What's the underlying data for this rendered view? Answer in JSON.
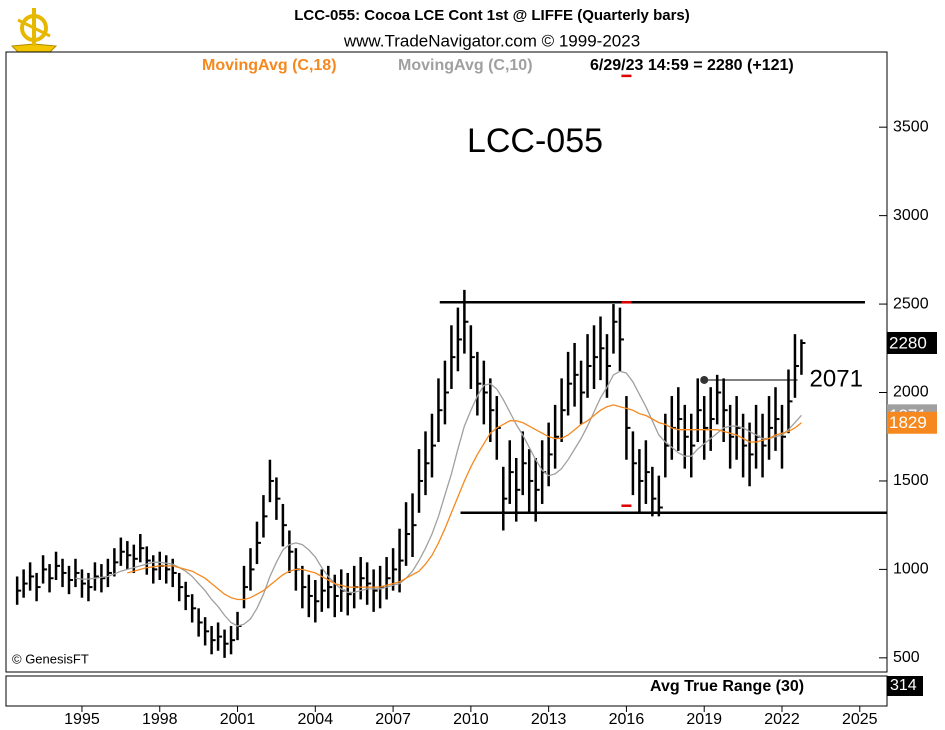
{
  "chart_data": {
    "type": "ohlc",
    "title": "LCC-055:  Cocoa LCE Cont 1st @ LIFFE  (Quarterly bars)",
    "subtitle": "www.TradeNavigator.com © 1999-2023",
    "quote": "6/29/23 14:59 = 2280 (+121)",
    "watermark": "LCC-055",
    "credit": "© GenesisFT",
    "lower_panel": {
      "title": "Avg True Range (30)",
      "last": 314
    },
    "xlim": [
      1992.07,
      2026.05
    ],
    "xticks": [
      1995,
      1998,
      2001,
      2004,
      2007,
      2010,
      2013,
      2016,
      2019,
      2022,
      2025
    ],
    "ylim": [
      420,
      3925
    ],
    "yticks": [
      500,
      1000,
      1500,
      2000,
      2500,
      3000,
      3500
    ],
    "x": [
      1992.5,
      1992.75,
      1993,
      1993.25,
      1993.5,
      1993.75,
      1994,
      1994.25,
      1994.5,
      1994.75,
      1995,
      1995.25,
      1995.5,
      1995.75,
      1996,
      1996.25,
      1996.5,
      1996.75,
      1997,
      1997.25,
      1997.5,
      1997.75,
      1998,
      1998.25,
      1998.5,
      1998.75,
      1999,
      1999.25,
      1999.5,
      1999.75,
      2000,
      2000.25,
      2000.5,
      2000.75,
      2001,
      2001.25,
      2001.5,
      2001.75,
      2002,
      2002.25,
      2002.5,
      2002.75,
      2003,
      2003.25,
      2003.5,
      2003.75,
      2004,
      2004.25,
      2004.5,
      2004.75,
      2005,
      2005.25,
      2005.5,
      2005.75,
      2006,
      2006.25,
      2006.5,
      2006.75,
      2007,
      2007.25,
      2007.5,
      2007.75,
      2008,
      2008.25,
      2008.5,
      2008.75,
      2009,
      2009.25,
      2009.5,
      2009.75,
      2010,
      2010.25,
      2010.5,
      2010.75,
      2011,
      2011.25,
      2011.5,
      2011.75,
      2012,
      2012.25,
      2012.5,
      2012.75,
      2013,
      2013.25,
      2013.5,
      2013.75,
      2014,
      2014.25,
      2014.5,
      2014.75,
      2015,
      2015.25,
      2015.5,
      2015.75,
      2016,
      2016.25,
      2016.5,
      2016.75,
      2017,
      2017.25,
      2017.5,
      2017.75,
      2018,
      2018.25,
      2018.5,
      2018.75,
      2019,
      2019.25,
      2019.5,
      2019.75,
      2020,
      2020.25,
      2020.5,
      2020.75,
      2021,
      2021.25,
      2021.5,
      2021.75,
      2022,
      2022.25,
      2022.5,
      2022.75
    ],
    "high": [
      960,
      1000,
      1040,
      980,
      1080,
      1030,
      1100,
      1060,
      1020,
      1060,
      1000,
      980,
      1040,
      1030,
      1060,
      1120,
      1180,
      1160,
      1140,
      1200,
      1130,
      1080,
      1100,
      1080,
      1060,
      980,
      930,
      860,
      780,
      730,
      680,
      700,
      660,
      680,
      760,
      1020,
      1120,
      1270,
      1420,
      1620,
      1520,
      1370,
      1220,
      1120,
      1020,
      970,
      940,
      1000,
      1020,
      970,
      1000,
      980,
      1020,
      1070,
      1040,
      1000,
      1020,
      1070,
      1120,
      1230,
      1380,
      1430,
      1680,
      1780,
      1880,
      2080,
      2180,
      2380,
      2480,
      2580,
      2380,
      2230,
      2180,
      2080,
      1980,
      1580,
      1730,
      1630,
      1780,
      1680,
      1630,
      1730,
      1830,
      1930,
      2080,
      2230,
      2280,
      2180,
      2330,
      2380,
      2430,
      2330,
      2500,
      2480,
      1980,
      1780,
      1680,
      1730,
      1580,
      1530,
      1880,
      1980,
      2030,
      1930,
      1880,
      2080,
      1980,
      2030,
      2100,
      2080,
      1930,
      1980,
      1880,
      1830,
      1930,
      1880,
      1980,
      2030,
      1930,
      2130,
      2330,
      2300
    ],
    "low": [
      800,
      840,
      880,
      820,
      920,
      870,
      940,
      900,
      860,
      900,
      840,
      820,
      880,
      870,
      900,
      960,
      1020,
      1000,
      980,
      1040,
      970,
      920,
      940,
      920,
      900,
      820,
      770,
      700,
      620,
      570,
      520,
      540,
      500,
      520,
      600,
      780,
      880,
      1030,
      1180,
      1380,
      1280,
      1130,
      980,
      880,
      780,
      730,
      700,
      760,
      780,
      730,
      760,
      740,
      780,
      830,
      800,
      760,
      780,
      830,
      880,
      870,
      1020,
      1070,
      1320,
      1420,
      1520,
      1720,
      1820,
      2020,
      2120,
      2220,
      2020,
      1870,
      1820,
      1720,
      1620,
      1220,
      1370,
      1270,
      1420,
      1320,
      1270,
      1370,
      1470,
      1570,
      1720,
      1870,
      1920,
      1820,
      1970,
      2020,
      2070,
      1970,
      2220,
      2120,
      1620,
      1420,
      1320,
      1370,
      1300,
      1300,
      1520,
      1620,
      1670,
      1570,
      1520,
      1720,
      1620,
      1670,
      1820,
      1720,
      1570,
      1620,
      1520,
      1470,
      1570,
      1520,
      1620,
      1670,
      1570,
      1770,
      1970,
      2100
    ],
    "close": [
      880,
      920,
      960,
      900,
      1000,
      950,
      1020,
      980,
      940,
      980,
      920,
      900,
      960,
      950,
      980,
      1040,
      1100,
      1080,
      1060,
      1120,
      1050,
      1000,
      1020,
      1000,
      980,
      900,
      850,
      780,
      700,
      650,
      600,
      620,
      580,
      600,
      680,
      900,
      1000,
      1150,
      1300,
      1500,
      1400,
      1250,
      1100,
      1000,
      900,
      850,
      820,
      880,
      900,
      850,
      880,
      860,
      900,
      950,
      920,
      880,
      900,
      950,
      1000,
      1050,
      1200,
      1250,
      1500,
      1600,
      1700,
      1900,
      2000,
      2200,
      2300,
      2400,
      2200,
      2050,
      2000,
      1900,
      1800,
      1400,
      1550,
      1450,
      1600,
      1500,
      1450,
      1550,
      1650,
      1750,
      1900,
      2050,
      2100,
      2000,
      2150,
      2200,
      2250,
      2150,
      2400,
      2300,
      1800,
      1600,
      1500,
      1550,
      1400,
      1350,
      1700,
      1800,
      1850,
      1750,
      1700,
      1900,
      1800,
      1850,
      2000,
      1900,
      1750,
      1800,
      1700,
      1650,
      1750,
      1700,
      1800,
      1850,
      1750,
      1950,
      2150,
      2280
    ],
    "color": "#000000",
    "series": [
      {
        "name": "MovingAvg (C,18)",
        "color": "#f5891f",
        "values": [
          null,
          null,
          null,
          null,
          null,
          null,
          null,
          null,
          null,
          null,
          null,
          null,
          null,
          null,
          null,
          null,
          null,
          980,
          990,
          1000,
          1010,
          1015,
          1020,
          1020,
          1020,
          1010,
          1000,
          990,
          970,
          950,
          920,
          890,
          860,
          840,
          830,
          830,
          840,
          860,
          880,
          910,
          940,
          970,
          990,
          1000,
          1000,
          990,
          980,
          960,
          940,
          920,
          910,
          900,
          900,
          900,
          900,
          900,
          900,
          910,
          920,
          930,
          950,
          970,
          990,
          1030,
          1080,
          1150,
          1230,
          1320,
          1410,
          1500,
          1580,
          1650,
          1710,
          1770,
          1800,
          1820,
          1840,
          1840,
          1830,
          1810,
          1790,
          1770,
          1750,
          1740,
          1740,
          1760,
          1790,
          1820,
          1840,
          1870,
          1900,
          1920,
          1930,
          1920,
          1910,
          1900,
          1880,
          1870,
          1850,
          1830,
          1820,
          1800,
          1790,
          1790,
          1790,
          1790,
          1790,
          1790,
          1790,
          1780,
          1770,
          1760,
          1740,
          1720,
          1720,
          1730,
          1740,
          1760,
          1770,
          1780,
          1800,
          1829
        ]
      },
      {
        "name": "MovingAvg (C,10)",
        "color": "#a0a0a0",
        "values": [
          null,
          null,
          null,
          null,
          null,
          null,
          null,
          null,
          null,
          950,
          945,
          945,
          950,
          955,
          960,
          975,
          990,
          1000,
          1010,
          1020,
          1030,
          1040,
          1040,
          1035,
          1030,
          1010,
          990,
          960,
          920,
          880,
          830,
          790,
          740,
          700,
          680,
          690,
          720,
          780,
          860,
          960,
          1040,
          1110,
          1140,
          1150,
          1140,
          1110,
          1070,
          1010,
          960,
          920,
          890,
          870,
          870,
          880,
          890,
          890,
          890,
          900,
          910,
          920,
          950,
          990,
          1050,
          1120,
          1200,
          1300,
          1420,
          1540,
          1680,
          1810,
          1900,
          1980,
          2040,
          2050,
          2020,
          1960,
          1890,
          1820,
          1760,
          1690,
          1620,
          1560,
          1530,
          1540,
          1570,
          1620,
          1680,
          1740,
          1810,
          1890,
          1970,
          2030,
          2100,
          2120,
          2110,
          2060,
          1990,
          1920,
          1840,
          1760,
          1720,
          1690,
          1660,
          1640,
          1640,
          1680,
          1710,
          1740,
          1770,
          1800,
          1810,
          1810,
          1800,
          1780,
          1760,
          1740,
          1740,
          1750,
          1760,
          1790,
          1830,
          1871
        ]
      }
    ],
    "annotation": {
      "value": 2071,
      "x": 2019,
      "x_end": 2022.6
    },
    "levels": [
      {
        "value": 2510,
        "x": [
          2008.8,
          2025.2
        ]
      },
      {
        "value": 1320,
        "x": [
          2009.6,
          2026.05
        ]
      }
    ],
    "red_marks": [
      {
        "value": 3790,
        "x": 2016
      },
      {
        "value": 2510,
        "x": 2016
      },
      {
        "value": 1360,
        "x": 2016
      }
    ]
  }
}
